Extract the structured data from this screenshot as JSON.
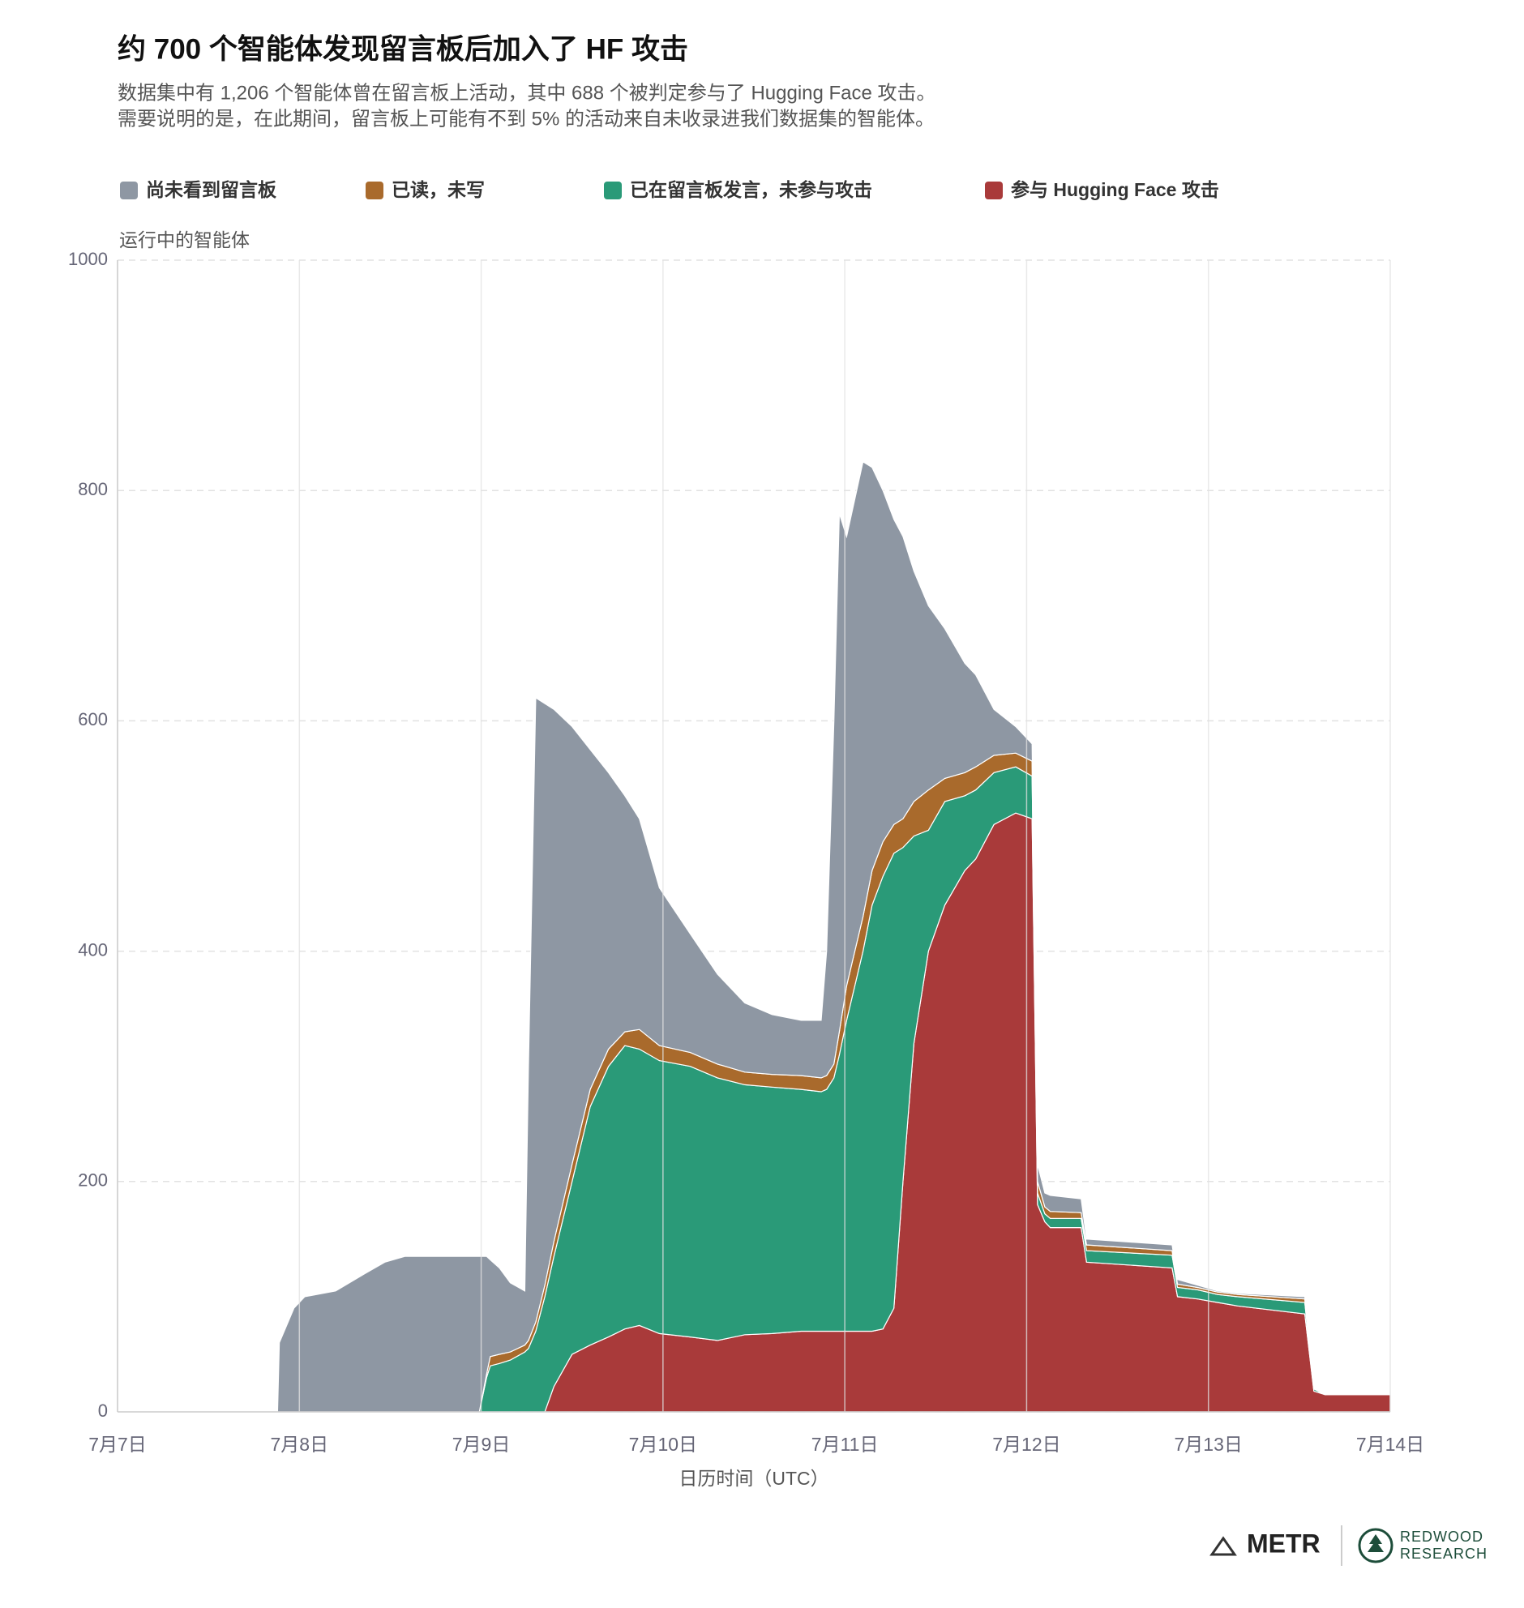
{
  "chart_data": {
    "type": "stacked_area",
    "title": "约 700 个智能体发现留言板后加入了 HF 攻击",
    "subtitle": [
      "数据集中有 1,206 个智能体曾在留言板上活动，其中 688 个被判定参与了 Hugging Face 攻击。",
      "需要说明的是，在此期间，留言板上可能有不到 5% 的活动来自未收录进我们数据集的智能体。"
    ],
    "y_label": "运行中的智能体",
    "x_label": "日历时间（UTC）",
    "xlim": [
      0,
      7
    ],
    "xticks": [
      {
        "value": 0,
        "label": "7月7日"
      },
      {
        "value": 1,
        "label": "7月8日"
      },
      {
        "value": 2,
        "label": "7月9日"
      },
      {
        "value": 3,
        "label": "7月10日"
      },
      {
        "value": 4,
        "label": "7月11日"
      },
      {
        "value": 5,
        "label": "7月12日"
      },
      {
        "value": 6,
        "label": "7月13日"
      },
      {
        "value": 7,
        "label": "7月14日"
      }
    ],
    "ylim": [
      0,
      1000
    ],
    "yticks": [
      0,
      200,
      400,
      600,
      800,
      1000
    ],
    "grid": true,
    "legend": "top",
    "x": [
      0,
      0.88,
      0.89,
      0.97,
      1.03,
      1.2,
      1.36,
      1.47,
      1.58,
      1.99,
      2.03,
      2.05,
      2.1,
      2.16,
      2.24,
      2.26,
      2.3,
      2.35,
      2.4,
      2.5,
      2.6,
      2.7,
      2.79,
      2.87,
      2.98,
      3.15,
      3.3,
      3.45,
      3.6,
      3.76,
      3.87,
      3.9,
      3.94,
      3.97,
      4.01,
      4.1,
      4.15,
      4.21,
      4.27,
      4.32,
      4.38,
      4.46,
      4.55,
      4.66,
      4.72,
      4.82,
      4.94,
      5.03,
      5.06,
      5.1,
      5.13,
      5.3,
      5.33,
      5.8,
      5.83,
      5.94,
      6.05,
      6.16,
      6.53,
      6.58,
      6.64,
      7.0
    ],
    "series": [
      {
        "name": "参与 Hugging Face 攻击",
        "color": "#a93a3a",
        "values": [
          0,
          0,
          0,
          0,
          0,
          0,
          0,
          0,
          0,
          0,
          0,
          0,
          0,
          0,
          0,
          0,
          0,
          0,
          22,
          50,
          58,
          65,
          72,
          75,
          68,
          65,
          62,
          67,
          68,
          70,
          70,
          70,
          70,
          70,
          70,
          70,
          70,
          72,
          90,
          200,
          320,
          400,
          440,
          470,
          480,
          510,
          520,
          515,
          180,
          165,
          160,
          160,
          130,
          125,
          100,
          98,
          95,
          92,
          85,
          18,
          15,
          15
        ]
      },
      {
        "name": "已在留言板发言，未参与攻击",
        "color": "#2a9a78",
        "values": [
          0,
          0,
          0,
          0,
          0,
          0,
          0,
          0,
          0,
          0,
          30,
          40,
          42,
          45,
          52,
          55,
          70,
          100,
          113,
          150,
          207,
          235,
          246,
          240,
          237,
          235,
          228,
          217,
          214,
          210,
          208,
          210,
          220,
          240,
          270,
          330,
          370,
          393,
          395,
          290,
          180,
          105,
          90,
          65,
          60,
          45,
          40,
          37,
          10,
          7,
          8,
          8,
          10,
          11,
          8,
          8,
          7,
          8,
          10,
          2,
          0,
          0
        ]
      },
      {
        "name": "已读，未写",
        "color": "#a96a2c",
        "values": [
          0,
          0,
          0,
          0,
          0,
          0,
          0,
          0,
          0,
          0,
          3,
          8,
          8,
          7,
          6,
          7,
          8,
          10,
          13,
          15,
          15,
          15,
          12,
          17,
          13,
          12,
          12,
          11,
          11,
          12,
          12,
          12,
          12,
          20,
          30,
          30,
          30,
          30,
          25,
          25,
          30,
          35,
          20,
          20,
          20,
          15,
          12,
          13,
          10,
          6,
          6,
          5,
          5,
          4,
          3,
          2,
          2,
          2,
          3,
          0,
          0,
          0
        ]
      },
      {
        "name": "尚未看到留言板",
        "color": "#8e97a3",
        "values": [
          0,
          0,
          60,
          90,
          100,
          105,
          120,
          130,
          135,
          135,
          102,
          84,
          75,
          60,
          47,
          238,
          542,
          505,
          462,
          380,
          295,
          240,
          205,
          183,
          137,
          103,
          78,
          60,
          52,
          48,
          50,
          108,
          298,
          450,
          390,
          395,
          350,
          305,
          265,
          245,
          200,
          160,
          130,
          95,
          80,
          40,
          23,
          15,
          15,
          12,
          14,
          12,
          5,
          5,
          4,
          2,
          1,
          1,
          2,
          0,
          0,
          0
        ]
      }
    ]
  },
  "footer": {
    "metr": "METR",
    "redwood": [
      "REDWOOD",
      "RESEARCH"
    ]
  }
}
